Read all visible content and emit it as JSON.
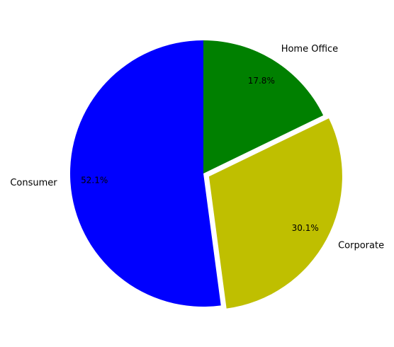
{
  "chart_data": {
    "type": "pie",
    "start_angle": "top",
    "direction": "counterclockwise",
    "slices": [
      {
        "label": "Consumer",
        "value": 52.1,
        "pct_text": "52.1%",
        "color": "#0000ff",
        "exploded": false
      },
      {
        "label": "Corporate",
        "value": 30.1,
        "pct_text": "30.1%",
        "color": "#bfbf00",
        "exploded": true
      },
      {
        "label": "Home Office",
        "value": 17.8,
        "pct_text": "17.8%",
        "color": "#008000",
        "exploded": false
      }
    ]
  }
}
